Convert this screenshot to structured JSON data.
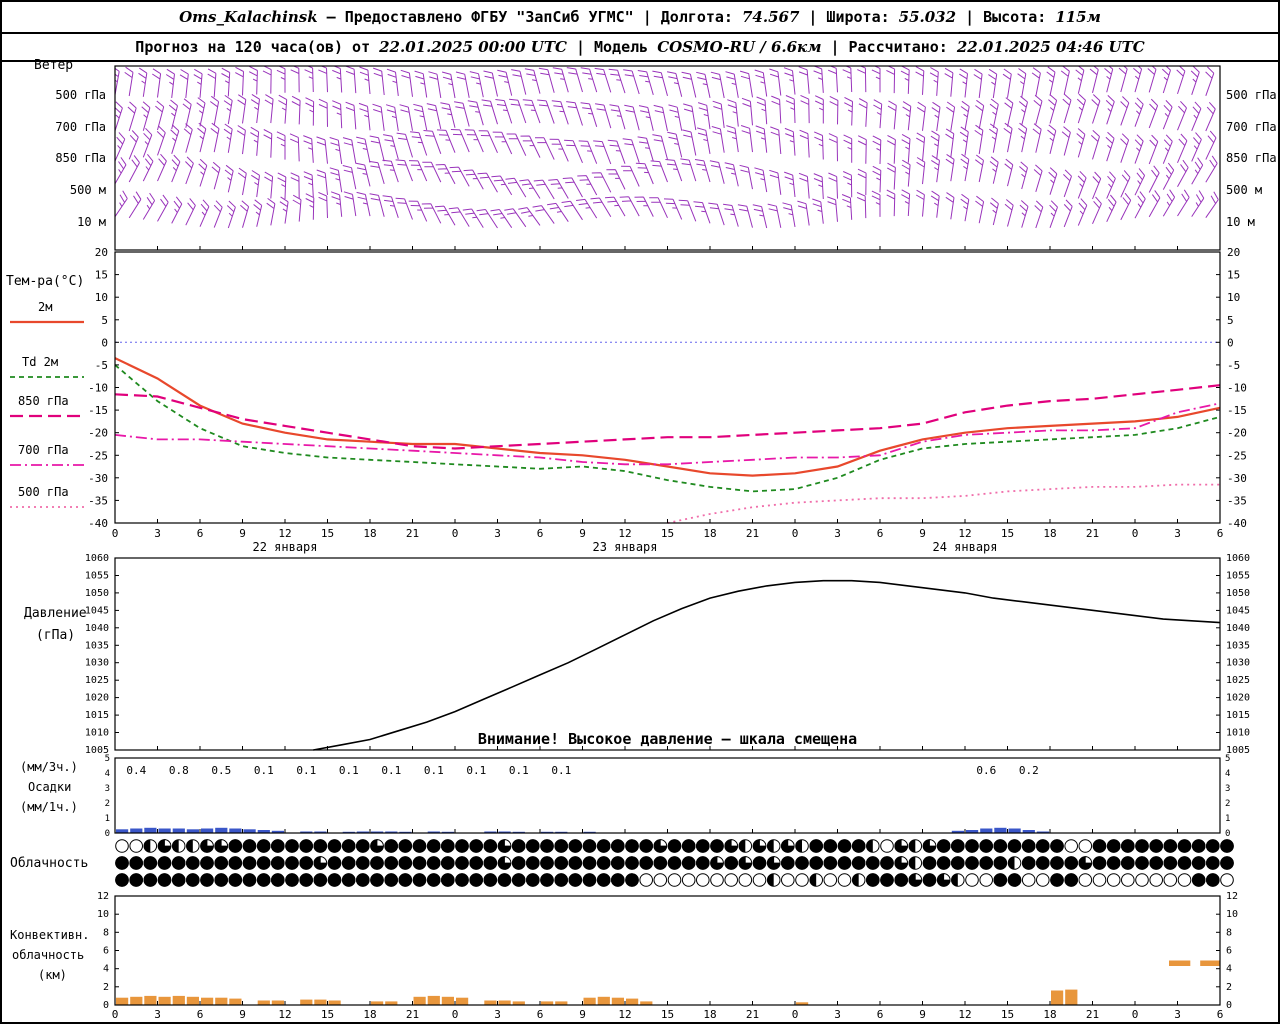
{
  "header": {
    "station": "Oms_Kalachinsk",
    "provided": "— Предоставлено ФГБУ \"ЗапСиб УГМС\"",
    "sep": "|",
    "lon_label": "Долгота:",
    "lon": "74.567",
    "lat_label": "Широта:",
    "lat": "55.032",
    "alt_label": "Высота:",
    "alt": "115м",
    "forecast_prefix": "Прогноз на 120 часа(ов) от",
    "run_time": "22.01.2025 00:00 UTC",
    "model_label": "Модель",
    "model": "COSMO-RU / 6.6км",
    "calc_label": "Рассчитано:",
    "calc_time": "22.01.2025 04:46 UTC"
  },
  "x_axis": {
    "hours_max": 78,
    "tick_step": 3,
    "dates": [
      {
        "h": 12,
        "label": "22 января"
      },
      {
        "h": 36,
        "label": "23 января"
      },
      {
        "h": 60,
        "label": "24 января"
      }
    ]
  },
  "chart_data": [
    {
      "id": "wind",
      "type": "wind-barbs",
      "panel_label": "Ветер",
      "levels": [
        "500 гПа",
        "700 гПа",
        "850 гПа",
        "500 м",
        "10 м"
      ],
      "color": "#9933bb",
      "control_angles": [
        [
          80,
          85,
          90,
          95,
          100,
          105,
          108,
          102,
          96,
          90,
          84,
          78,
          74,
          70
        ],
        [
          72,
          78,
          86,
          96,
          104,
          110,
          106,
          98,
          92,
          86,
          80,
          74,
          70,
          66
        ],
        [
          66,
          76,
          90,
          102,
          112,
          116,
          110,
          100,
          94,
          88,
          82,
          76,
          70,
          64
        ],
        [
          60,
          72,
          88,
          104,
          118,
          122,
          116,
          106,
          96,
          88,
          80,
          72,
          64,
          58
        ],
        [
          56,
          66,
          82,
          102,
          120,
          126,
          120,
          110,
          100,
          90,
          80,
          70,
          62,
          54
        ]
      ],
      "wave_amp": [
        3,
        4,
        6,
        9,
        6
      ]
    },
    {
      "id": "temperature",
      "type": "line",
      "title": "Тем-ра(°C)",
      "x_step": 3,
      "ylim": [
        -40,
        20
      ],
      "yticks": [
        20,
        15,
        10,
        5,
        0,
        -5,
        -10,
        -15,
        -20,
        -25,
        -30,
        -35,
        -40
      ],
      "zero_line_color": "#6666ee",
      "series": [
        {
          "name": "2м",
          "color": "#e8482c",
          "style": "solid",
          "values": [
            -3.5,
            -8,
            -14,
            -18,
            -20,
            -21.5,
            -22,
            -22.5,
            -22.5,
            -23.5,
            -24.5,
            -25,
            -26,
            -27.5,
            -29,
            -29.5,
            -29,
            -27.5,
            -24,
            -21.5,
            -20,
            -19,
            -18.5,
            -18,
            -17.5,
            -16.5,
            -14.5
          ]
        },
        {
          "name": "Td 2м",
          "color": "#1f8a1f",
          "style": "dashed",
          "values": [
            -5,
            -13,
            -19,
            -23,
            -24.5,
            -25.5,
            -26,
            -26.5,
            -27,
            -27.5,
            -28,
            -27.5,
            -28.5,
            -30.5,
            -32,
            -33,
            -32.5,
            -30,
            -26,
            -23.5,
            -22.5,
            -22,
            -21.5,
            -21,
            -20.5,
            -19,
            -16.5
          ]
        },
        {
          "name": "850 гПа",
          "color": "#e0007c",
          "style": "longdash",
          "values": [
            -11.5,
            -12,
            -14.5,
            -17,
            -18.5,
            -20,
            -21.5,
            -23,
            -23.5,
            -23,
            -22.5,
            -22,
            -21.5,
            -21,
            -21,
            -20.5,
            -20,
            -19.5,
            -19,
            -18,
            -15.5,
            -14,
            -13,
            -12.5,
            -11.5,
            -10.5,
            -9.5
          ]
        },
        {
          "name": "700 гПа",
          "color": "#e818a8",
          "style": "dashdot",
          "values": [
            -20.5,
            -21.5,
            -21.5,
            -22,
            -22.5,
            -23,
            -23.5,
            -24,
            -24.5,
            -25,
            -25.5,
            -26.5,
            -27,
            -27,
            -26.5,
            -26,
            -25.5,
            -25.5,
            -25,
            -22,
            -20.5,
            -20,
            -19.5,
            -19.5,
            -19,
            -15.5,
            -13.5
          ]
        },
        {
          "name": "500 гПа",
          "color": "#f06daa",
          "style": "dotted",
          "values": [
            null,
            null,
            null,
            null,
            null,
            null,
            null,
            null,
            null,
            null,
            null,
            null,
            null,
            -40,
            -38,
            -36.5,
            -35.5,
            -35,
            -34.5,
            -34.5,
            -34,
            -33,
            -32.5,
            -32,
            -32,
            -31.5,
            -31.5
          ]
        }
      ]
    },
    {
      "id": "pressure",
      "type": "line",
      "title_line1": "Давление",
      "title_line2": "(гПа)",
      "ylim": [
        1005,
        1060
      ],
      "yticks": [
        1060,
        1055,
        1050,
        1045,
        1040,
        1035,
        1030,
        1025,
        1020,
        1015,
        1010,
        1005
      ],
      "color": "#000000",
      "warning": "Внимание! Высокое давление — шкала смещена",
      "points": [
        [
          14,
          1005
        ],
        [
          16,
          1006.5
        ],
        [
          18,
          1008
        ],
        [
          20,
          1010.5
        ],
        [
          22,
          1013
        ],
        [
          24,
          1016
        ],
        [
          26,
          1019.5
        ],
        [
          28,
          1023
        ],
        [
          30,
          1026.5
        ],
        [
          32,
          1030
        ],
        [
          34,
          1034
        ],
        [
          36,
          1038
        ],
        [
          38,
          1042
        ],
        [
          40,
          1045.5
        ],
        [
          42,
          1048.5
        ],
        [
          44,
          1050.5
        ],
        [
          46,
          1052
        ],
        [
          48,
          1053
        ],
        [
          50,
          1053.5
        ],
        [
          52,
          1053.5
        ],
        [
          54,
          1053
        ],
        [
          56,
          1052
        ],
        [
          58,
          1051
        ],
        [
          60,
          1050
        ],
        [
          62,
          1048.5
        ],
        [
          64,
          1047.5
        ],
        [
          66,
          1046.5
        ],
        [
          68,
          1045.5
        ],
        [
          70,
          1044.5
        ],
        [
          72,
          1043.5
        ],
        [
          74,
          1042.5
        ],
        [
          76,
          1042
        ],
        [
          78,
          1041.5
        ]
      ]
    },
    {
      "id": "precipitation",
      "type": "bar",
      "label_3h": "(мм/3ч.)",
      "label_main": "Осадки",
      "label_1h": "(мм/1ч.)",
      "ylim": [
        0,
        5
      ],
      "yticks": [
        5,
        4,
        3,
        2,
        1,
        0
      ],
      "color": "#3a56c8",
      "amounts_3h": [
        {
          "h": 1.5,
          "v": "0.4"
        },
        {
          "h": 4.5,
          "v": "0.8"
        },
        {
          "h": 7.5,
          "v": "0.5"
        },
        {
          "h": 10.5,
          "v": "0.1"
        },
        {
          "h": 13.5,
          "v": "0.1"
        },
        {
          "h": 16.5,
          "v": "0.1"
        },
        {
          "h": 19.5,
          "v": "0.1"
        },
        {
          "h": 22.5,
          "v": "0.1"
        },
        {
          "h": 25.5,
          "v": "0.1"
        },
        {
          "h": 28.5,
          "v": "0.1"
        },
        {
          "h": 31.5,
          "v": "0.1"
        },
        {
          "h": 61.5,
          "v": "0.6"
        },
        {
          "h": 64.5,
          "v": "0.2"
        }
      ],
      "hourly": [
        0.25,
        0.3,
        0.35,
        0.3,
        0.3,
        0.25,
        0.3,
        0.35,
        0.3,
        0.25,
        0.2,
        0.15,
        0,
        0.1,
        0.1,
        0,
        0.08,
        0.1,
        0.1,
        0.1,
        0.08,
        0,
        0.1,
        0.08,
        0,
        0,
        0.1,
        0.1,
        0.08,
        0,
        0.08,
        0.08,
        0,
        0.08,
        0,
        0,
        0,
        0,
        0,
        0,
        0,
        0,
        0,
        0,
        0,
        0,
        0,
        0,
        0,
        0,
        0,
        0,
        0,
        0,
        0,
        0,
        0,
        0,
        0,
        0.15,
        0.2,
        0.3,
        0.35,
        0.3,
        0.2,
        0.1,
        0,
        0,
        0,
        0,
        0,
        0,
        0,
        0,
        0,
        0,
        0,
        0,
        0,
        0
      ]
    },
    {
      "id": "cloudiness",
      "type": "symbol-rows",
      "title": "Облачность",
      "rows": [
        [
          [
            2,
            "0"
          ],
          [
            1,
            "1"
          ],
          [
            1,
            "2"
          ],
          [
            2,
            "1"
          ],
          [
            2,
            "2"
          ],
          [
            10,
            "3"
          ],
          [
            1,
            "2"
          ],
          [
            8,
            "3"
          ],
          [
            1,
            "2"
          ],
          [
            10,
            "3"
          ],
          [
            1,
            "2"
          ],
          [
            4,
            "3"
          ],
          [
            1,
            "2"
          ],
          [
            1,
            "1"
          ],
          [
            1,
            "2"
          ],
          [
            1,
            "1"
          ],
          [
            1,
            "2"
          ],
          [
            1,
            "1"
          ],
          [
            4,
            "3"
          ],
          [
            1,
            "1"
          ],
          [
            1,
            "0"
          ],
          [
            1,
            "2"
          ],
          [
            1,
            "1"
          ],
          [
            1,
            "2"
          ],
          [
            9,
            "3"
          ],
          [
            2,
            "0"
          ],
          [
            10,
            "3"
          ]
        ],
        [
          [
            14,
            "3"
          ],
          [
            1,
            "2"
          ],
          [
            12,
            "3"
          ],
          [
            1,
            "2"
          ],
          [
            14,
            "3"
          ],
          [
            1,
            "2"
          ],
          [
            1,
            "3"
          ],
          [
            1,
            "2"
          ],
          [
            1,
            "3"
          ],
          [
            1,
            "2"
          ],
          [
            8,
            "3"
          ],
          [
            1,
            "2"
          ],
          [
            1,
            "1"
          ],
          [
            6,
            "3"
          ],
          [
            1,
            "1"
          ],
          [
            4,
            "3"
          ],
          [
            1,
            "2"
          ],
          [
            10,
            "3"
          ]
        ],
        [
          [
            37,
            "3"
          ],
          [
            9,
            "0"
          ],
          [
            1,
            "1"
          ],
          [
            2,
            "0"
          ],
          [
            1,
            "1"
          ],
          [
            2,
            "0"
          ],
          [
            1,
            "1"
          ],
          [
            3,
            "3"
          ],
          [
            1,
            "2"
          ],
          [
            1,
            "3"
          ],
          [
            1,
            "2"
          ],
          [
            1,
            "1"
          ],
          [
            2,
            "0"
          ],
          [
            2,
            "3"
          ],
          [
            2,
            "0"
          ],
          [
            2,
            "3"
          ],
          [
            8,
            "0"
          ],
          [
            2,
            "3"
          ],
          [
            1,
            "0"
          ]
        ]
      ]
    },
    {
      "id": "convective-cloud",
      "type": "bar",
      "title_lines": [
        "Конвективн.",
        "облачность",
        "(км)"
      ],
      "ylim": [
        0,
        12
      ],
      "yticks": [
        12,
        10,
        8,
        6,
        4,
        2,
        0
      ],
      "color": "#e8963c",
      "hourly": [
        0.8,
        0.9,
        1.0,
        0.9,
        1.0,
        0.9,
        0.8,
        0.8,
        0.7,
        0,
        0.5,
        0.5,
        0,
        0.6,
        0.6,
        0.5,
        0,
        0,
        0.4,
        0.4,
        0,
        0.9,
        1.0,
        0.9,
        0.8,
        0,
        0.5,
        0.5,
        0.4,
        0,
        0.4,
        0.4,
        0,
        0.8,
        0.9,
        0.8,
        0.7,
        0.4,
        0,
        0,
        0,
        0,
        0,
        0,
        0,
        0,
        0,
        0,
        0.3,
        0,
        0,
        0,
        0,
        0,
        0,
        0,
        0,
        0,
        0,
        0,
        0,
        0,
        0,
        0,
        0,
        0,
        1.6,
        1.7,
        0,
        0,
        0,
        0,
        0,
        0,
        0,
        0,
        0,
        0,
        0
      ],
      "segments": [
        {
          "h0": 74.4,
          "h1": 75.9,
          "base": 4.3,
          "top": 4.9
        },
        {
          "h0": 76.6,
          "h1": 78.0,
          "base": 4.3,
          "top": 4.9
        }
      ]
    }
  ]
}
